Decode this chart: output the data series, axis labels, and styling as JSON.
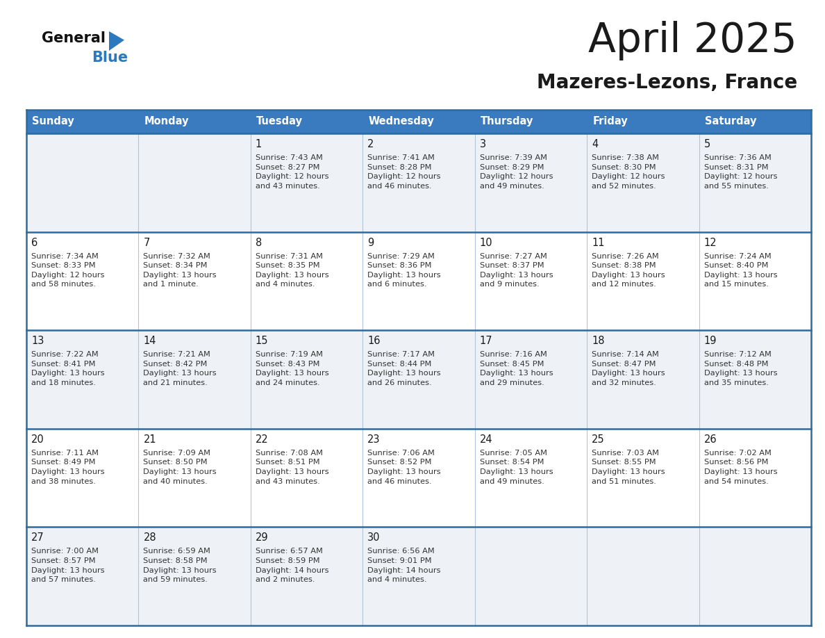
{
  "title": "April 2025",
  "subtitle": "Mazeres-Lezons, France",
  "days_of_week": [
    "Sunday",
    "Monday",
    "Tuesday",
    "Wednesday",
    "Thursday",
    "Friday",
    "Saturday"
  ],
  "header_bg": "#3a7bbf",
  "header_text": "#ffffff",
  "row_bg_light": "#eef2f7",
  "row_bg_white": "#ffffff",
  "border_color": "#2d6aa0",
  "sep_color": "#b0c4de",
  "text_color": "#333333",
  "day_num_color": "#1a1a1a",
  "calendar_data": [
    [
      "",
      "",
      "1\nSunrise: 7:43 AM\nSunset: 8:27 PM\nDaylight: 12 hours\nand 43 minutes.",
      "2\nSunrise: 7:41 AM\nSunset: 8:28 PM\nDaylight: 12 hours\nand 46 minutes.",
      "3\nSunrise: 7:39 AM\nSunset: 8:29 PM\nDaylight: 12 hours\nand 49 minutes.",
      "4\nSunrise: 7:38 AM\nSunset: 8:30 PM\nDaylight: 12 hours\nand 52 minutes.",
      "5\nSunrise: 7:36 AM\nSunset: 8:31 PM\nDaylight: 12 hours\nand 55 minutes."
    ],
    [
      "6\nSunrise: 7:34 AM\nSunset: 8:33 PM\nDaylight: 12 hours\nand 58 minutes.",
      "7\nSunrise: 7:32 AM\nSunset: 8:34 PM\nDaylight: 13 hours\nand 1 minute.",
      "8\nSunrise: 7:31 AM\nSunset: 8:35 PM\nDaylight: 13 hours\nand 4 minutes.",
      "9\nSunrise: 7:29 AM\nSunset: 8:36 PM\nDaylight: 13 hours\nand 6 minutes.",
      "10\nSunrise: 7:27 AM\nSunset: 8:37 PM\nDaylight: 13 hours\nand 9 minutes.",
      "11\nSunrise: 7:26 AM\nSunset: 8:38 PM\nDaylight: 13 hours\nand 12 minutes.",
      "12\nSunrise: 7:24 AM\nSunset: 8:40 PM\nDaylight: 13 hours\nand 15 minutes."
    ],
    [
      "13\nSunrise: 7:22 AM\nSunset: 8:41 PM\nDaylight: 13 hours\nand 18 minutes.",
      "14\nSunrise: 7:21 AM\nSunset: 8:42 PM\nDaylight: 13 hours\nand 21 minutes.",
      "15\nSunrise: 7:19 AM\nSunset: 8:43 PM\nDaylight: 13 hours\nand 24 minutes.",
      "16\nSunrise: 7:17 AM\nSunset: 8:44 PM\nDaylight: 13 hours\nand 26 minutes.",
      "17\nSunrise: 7:16 AM\nSunset: 8:45 PM\nDaylight: 13 hours\nand 29 minutes.",
      "18\nSunrise: 7:14 AM\nSunset: 8:47 PM\nDaylight: 13 hours\nand 32 minutes.",
      "19\nSunrise: 7:12 AM\nSunset: 8:48 PM\nDaylight: 13 hours\nand 35 minutes."
    ],
    [
      "20\nSunrise: 7:11 AM\nSunset: 8:49 PM\nDaylight: 13 hours\nand 38 minutes.",
      "21\nSunrise: 7:09 AM\nSunset: 8:50 PM\nDaylight: 13 hours\nand 40 minutes.",
      "22\nSunrise: 7:08 AM\nSunset: 8:51 PM\nDaylight: 13 hours\nand 43 minutes.",
      "23\nSunrise: 7:06 AM\nSunset: 8:52 PM\nDaylight: 13 hours\nand 46 minutes.",
      "24\nSunrise: 7:05 AM\nSunset: 8:54 PM\nDaylight: 13 hours\nand 49 minutes.",
      "25\nSunrise: 7:03 AM\nSunset: 8:55 PM\nDaylight: 13 hours\nand 51 minutes.",
      "26\nSunrise: 7:02 AM\nSunset: 8:56 PM\nDaylight: 13 hours\nand 54 minutes."
    ],
    [
      "27\nSunrise: 7:00 AM\nSunset: 8:57 PM\nDaylight: 13 hours\nand 57 minutes.",
      "28\nSunrise: 6:59 AM\nSunset: 8:58 PM\nDaylight: 13 hours\nand 59 minutes.",
      "29\nSunrise: 6:57 AM\nSunset: 8:59 PM\nDaylight: 14 hours\nand 2 minutes.",
      "30\nSunrise: 6:56 AM\nSunset: 9:01 PM\nDaylight: 14 hours\nand 4 minutes.",
      "",
      "",
      ""
    ]
  ],
  "logo_color_general": "#111111",
  "logo_color_blue": "#2b7abf",
  "logo_triangle_color": "#2b7abf",
  "title_color": "#1a1a1a",
  "subtitle_color": "#1a1a1a"
}
